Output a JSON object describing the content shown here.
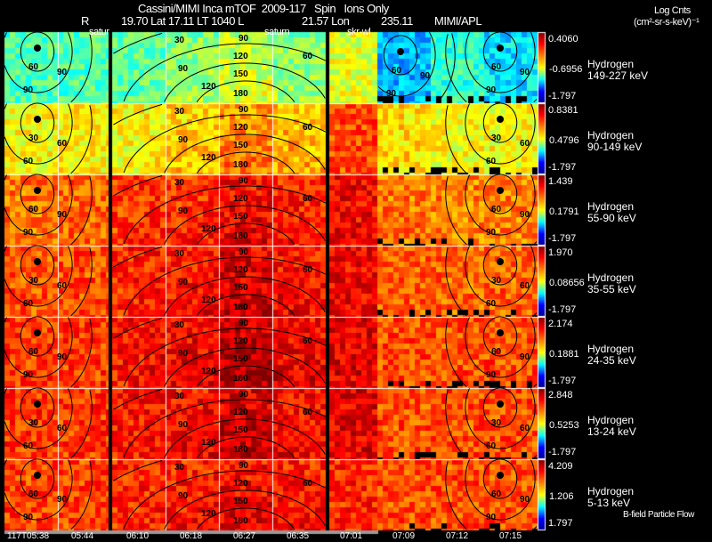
{
  "header": {
    "title": "Cassini/MIMI Inca mTOF  2009-117   Spin   Ions Only",
    "r_label": "R",
    "position": "19.70 Lat 17.11 LT 1040 L",
    "lon": "21.57 Lon",
    "r_value": "235.11",
    "credit": "MIMI/APL",
    "units_title": "Log Cnts",
    "units": "(cm²-sr-s-keV)⁻¹"
  },
  "panel_tags": [
    "satur",
    "saturn",
    "skr-wl"
  ],
  "footer_note": "B-field Particle Flow",
  "chart_data": {
    "type": "heatmap",
    "title": "Cassini/MIMI Inca mTOF  2009-117   Spin   Ions Only",
    "x_tick_labels": [
      "117T05:38",
      "05:44",
      "06:10",
      "06:18",
      "06:27",
      "06:35",
      "07:01",
      "07:09",
      "07:12",
      "07:15"
    ],
    "contour_labels": [
      "30",
      "60",
      "90",
      "120",
      "150",
      "180"
    ],
    "colormap": [
      "#00008f",
      "#0000ff",
      "#00ffff",
      "#ffff00",
      "#ff8000",
      "#ff0000",
      "#800000"
    ],
    "rows": [
      {
        "species": "Hydrogen",
        "energy": "149-227 keV",
        "max": "0.4060",
        "mid": "-0.6956",
        "min": "-1.797",
        "relative_level": [
          0.45,
          0.45,
          0.47,
          0.5,
          0.55,
          0.5,
          0.6,
          0.3,
          0.42,
          0.35
        ]
      },
      {
        "species": "Hydrogen",
        "energy": "90-149 keV",
        "max": "0.8381",
        "mid": "0.4796",
        "min": "-1.797",
        "relative_level": [
          0.62,
          0.63,
          0.63,
          0.66,
          0.72,
          0.68,
          0.8,
          0.66,
          0.62,
          0.62
        ]
      },
      {
        "species": "Hydrogen",
        "energy": "55-90 keV",
        "max": "1.439",
        "mid": "0.1791",
        "min": "-1.797",
        "relative_level": [
          0.76,
          0.78,
          0.83,
          0.82,
          0.86,
          0.83,
          0.88,
          0.76,
          0.75,
          0.75
        ]
      },
      {
        "species": "Hydrogen",
        "energy": "35-55 keV",
        "max": "1.970",
        "mid": "0.08656",
        "min": "-1.797",
        "relative_level": [
          0.79,
          0.8,
          0.85,
          0.85,
          0.89,
          0.85,
          0.88,
          0.78,
          0.78,
          0.78
        ]
      },
      {
        "species": "Hydrogen",
        "energy": "24-35 keV",
        "max": "2.174",
        "mid": "0.1881",
        "min": "-1.797",
        "relative_level": [
          0.82,
          0.82,
          0.87,
          0.87,
          0.92,
          0.87,
          0.9,
          0.8,
          0.8,
          0.8
        ]
      },
      {
        "species": "Hydrogen",
        "energy": "13-24 keV",
        "max": "2.848",
        "mid": "0.5253",
        "min": "-1.797",
        "relative_level": [
          0.82,
          0.82,
          0.86,
          0.86,
          0.9,
          0.86,
          0.9,
          0.8,
          0.8,
          0.8
        ]
      },
      {
        "species": "Hydrogen",
        "energy": "5-13 keV",
        "max": "4.209",
        "mid": "1.206",
        "min": "1.797",
        "relative_level": [
          0.81,
          0.81,
          0.84,
          0.84,
          0.86,
          0.84,
          0.84,
          0.8,
          0.8,
          0.8
        ]
      }
    ]
  }
}
